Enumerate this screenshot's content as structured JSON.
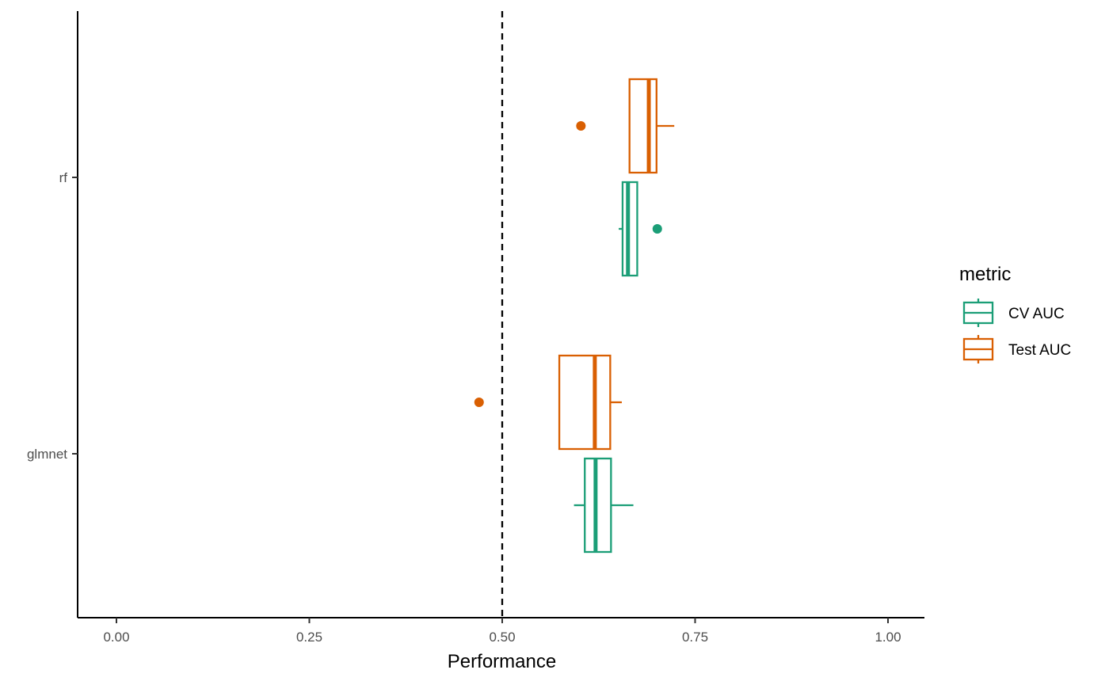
{
  "chart_data": {
    "type": "boxplot",
    "orientation": "horizontal",
    "xlabel": "Performance",
    "ylabel": "",
    "xlim": [
      -0.05,
      1.05
    ],
    "x_ticks": [
      0.0,
      0.25,
      0.5,
      0.75,
      1.0
    ],
    "x_tick_labels": [
      "0.00",
      "0.25",
      "0.50",
      "0.75",
      "1.00"
    ],
    "categories": [
      "glmnet",
      "rf"
    ],
    "reference_line": {
      "x": 0.5,
      "style": "dashed"
    },
    "grid": false,
    "legend": {
      "title": "metric",
      "position": "right"
    },
    "series": [
      {
        "name": "CV AUC",
        "color": "#1b9e77",
        "boxes": [
          {
            "category": "glmnet",
            "whisker_low": 0.593,
            "q1": 0.607,
            "median": 0.621,
            "q3": 0.641,
            "whisker_high": 0.67,
            "outliers": []
          },
          {
            "category": "rf",
            "whisker_low": 0.651,
            "q1": 0.656,
            "median": 0.663,
            "q3": 0.675,
            "whisker_high": 0.675,
            "outliers": [
              0.701
            ]
          }
        ]
      },
      {
        "name": "Test AUC",
        "color": "#d95f02",
        "boxes": [
          {
            "category": "glmnet",
            "whisker_low": 0.574,
            "q1": 0.574,
            "median": 0.62,
            "q3": 0.64,
            "whisker_high": 0.655,
            "outliers": [
              0.47
            ]
          },
          {
            "category": "rf",
            "whisker_low": 0.665,
            "q1": 0.665,
            "median": 0.69,
            "q3": 0.7,
            "whisker_high": 0.723,
            "outliers": [
              0.602
            ]
          }
        ]
      }
    ]
  }
}
